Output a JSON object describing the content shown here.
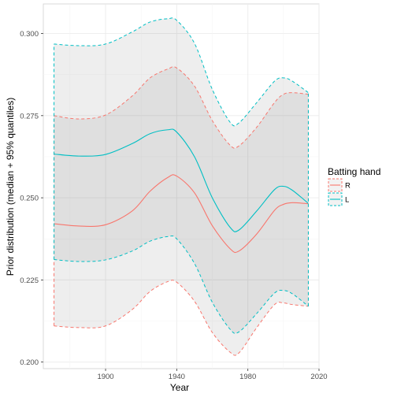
{
  "chart_data": {
    "type": "line",
    "xlabel": "Year",
    "ylabel": "Prior distribution (median + 95% quantiles)",
    "xlim": [
      1865,
      2020
    ],
    "ylim": [
      0.198,
      0.309
    ],
    "xticks": [
      1900,
      1940,
      1980,
      2020
    ],
    "yticks": [
      0.2,
      0.225,
      0.25,
      0.275,
      0.3
    ],
    "xtick_labels": [
      "1900",
      "1940",
      "1980",
      "2020"
    ],
    "ytick_labels": [
      "0.200",
      "0.225",
      "0.250",
      "0.275",
      "0.300"
    ],
    "grid": true,
    "legend": {
      "title": "Batting hand",
      "position": "right"
    },
    "series": [
      {
        "name": "R",
        "color": "#F8766D",
        "x": [
          1871,
          1885,
          1900,
          1915,
          1925,
          1935,
          1940,
          1950,
          1960,
          1970,
          1975,
          1985,
          1995,
          2000,
          2005,
          2014
        ],
        "median": [
          0.2421,
          0.2414,
          0.2418,
          0.246,
          0.252,
          0.2562,
          0.2566,
          0.2515,
          0.2415,
          0.2345,
          0.2338,
          0.239,
          0.2462,
          0.248,
          0.2485,
          0.2482
        ],
        "lower": [
          0.211,
          0.2105,
          0.211,
          0.216,
          0.2215,
          0.2245,
          0.2243,
          0.2185,
          0.209,
          0.203,
          0.2028,
          0.2105,
          0.2175,
          0.218,
          0.2175,
          0.217
        ],
        "upper": [
          0.275,
          0.274,
          0.2752,
          0.281,
          0.2865,
          0.2892,
          0.2895,
          0.284,
          0.2735,
          0.266,
          0.2658,
          0.2715,
          0.279,
          0.2815,
          0.282,
          0.2815
        ]
      },
      {
        "name": "L",
        "color": "#00BFC4",
        "x": [
          1871,
          1885,
          1900,
          1915,
          1925,
          1935,
          1940,
          1950,
          1960,
          1970,
          1975,
          1985,
          1995,
          2000,
          2005,
          2014
        ],
        "median": [
          0.2633,
          0.2627,
          0.2632,
          0.2665,
          0.2695,
          0.2707,
          0.27,
          0.2625,
          0.25,
          0.241,
          0.2402,
          0.246,
          0.2525,
          0.2535,
          0.2523,
          0.2483
        ],
        "lower": [
          0.2312,
          0.2306,
          0.2311,
          0.2338,
          0.2368,
          0.2382,
          0.2375,
          0.23,
          0.2182,
          0.21,
          0.2092,
          0.2148,
          0.221,
          0.2218,
          0.2208,
          0.217
        ],
        "upper": [
          0.2968,
          0.2963,
          0.2968,
          0.3005,
          0.3035,
          0.3045,
          0.304,
          0.297,
          0.283,
          0.273,
          0.2728,
          0.279,
          0.2855,
          0.2865,
          0.2855,
          0.282
        ]
      }
    ]
  }
}
